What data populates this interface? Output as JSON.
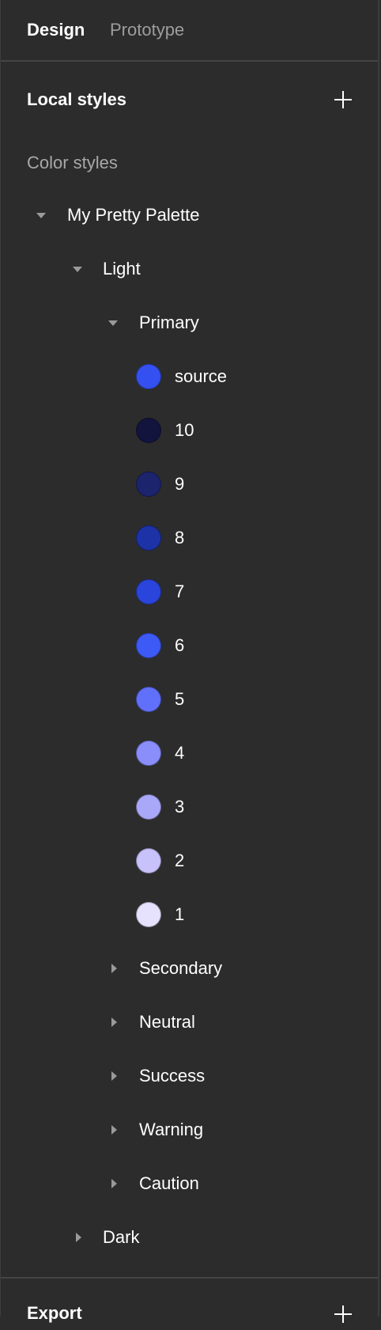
{
  "tabs": {
    "design": "Design",
    "prototype": "Prototype"
  },
  "local_styles": {
    "title": "Local styles",
    "add_icon": "plus-icon"
  },
  "color_styles_heading": "Color styles",
  "tree": {
    "palette": {
      "label": "My Pretty Palette",
      "expanded": true
    },
    "light": {
      "label": "Light",
      "expanded": true
    },
    "primary": {
      "label": "Primary",
      "expanded": true
    },
    "primary_swatches": [
      {
        "label": "source",
        "color": "#3550f0"
      },
      {
        "label": "10",
        "color": "#12143e"
      },
      {
        "label": "9",
        "color": "#1b246c"
      },
      {
        "label": "8",
        "color": "#1d32a6"
      },
      {
        "label": "7",
        "color": "#2a45dc"
      },
      {
        "label": "6",
        "color": "#3d5af6"
      },
      {
        "label": "5",
        "color": "#6170fb"
      },
      {
        "label": "4",
        "color": "#8a8efb"
      },
      {
        "label": "3",
        "color": "#a9a8f8"
      },
      {
        "label": "2",
        "color": "#c8c2fb"
      },
      {
        "label": "1",
        "color": "#e6e1fd"
      }
    ],
    "collapsed_groups": [
      {
        "label": "Secondary"
      },
      {
        "label": "Neutral"
      },
      {
        "label": "Success"
      },
      {
        "label": "Warning"
      },
      {
        "label": "Caution"
      }
    ],
    "dark": {
      "label": "Dark",
      "expanded": false
    }
  },
  "footer": {
    "title": "Export",
    "add_icon": "plus-icon"
  }
}
